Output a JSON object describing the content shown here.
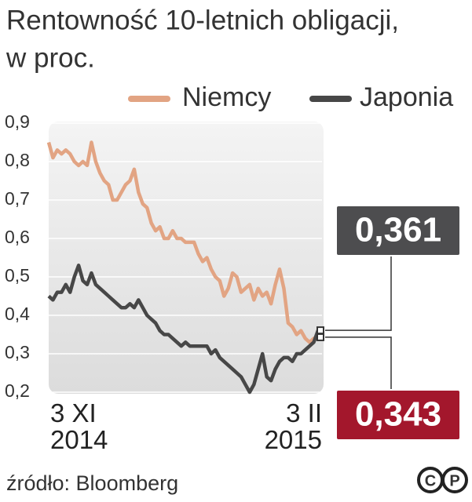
{
  "chart_data": {
    "type": "line",
    "title": "Rentowność 10-letnich obligacji,",
    "subtitle": "w proc.",
    "categories": [
      "3 XI\n2014",
      null,
      null,
      null,
      null,
      null,
      null,
      null,
      null,
      null,
      null,
      null,
      null,
      null,
      null,
      null,
      null,
      null,
      null,
      null,
      null,
      null,
      null,
      null,
      null,
      null,
      null,
      null,
      null,
      null,
      null,
      null,
      null,
      null,
      null,
      null,
      null,
      null,
      null,
      null,
      null,
      null,
      null,
      null,
      null,
      null,
      null,
      null,
      null,
      null,
      null,
      null,
      null,
      null,
      null,
      null,
      null,
      null,
      null,
      null,
      null,
      null,
      null,
      "3 II\n2015"
    ],
    "series": [
      {
        "name": "Niemcy",
        "color": "#e2a483",
        "label_color": "#a3172c",
        "values": [
          0.85,
          0.81,
          0.83,
          0.82,
          0.83,
          0.82,
          0.8,
          0.79,
          0.8,
          0.79,
          0.85,
          0.8,
          0.77,
          0.75,
          0.74,
          0.7,
          0.7,
          0.72,
          0.74,
          0.75,
          0.78,
          0.72,
          0.69,
          0.68,
          0.64,
          0.62,
          0.63,
          0.6,
          0.6,
          0.62,
          0.6,
          0.6,
          0.59,
          0.59,
          0.59,
          0.56,
          0.54,
          0.55,
          0.52,
          0.5,
          0.49,
          0.45,
          0.47,
          0.51,
          0.5,
          0.46,
          0.47,
          0.48,
          0.44,
          0.47,
          0.45,
          0.46,
          0.43,
          0.48,
          0.52,
          0.47,
          0.38,
          0.37,
          0.35,
          0.36,
          0.34,
          0.33,
          0.34,
          0.343
        ],
        "value_labels": [
          null,
          null,
          null,
          null,
          null,
          null,
          null,
          null,
          null,
          null,
          null,
          null,
          null,
          null,
          null,
          null,
          null,
          null,
          null,
          null,
          null,
          null,
          null,
          null,
          null,
          null,
          null,
          null,
          null,
          null,
          null,
          null,
          null,
          null,
          null,
          null,
          null,
          null,
          null,
          null,
          null,
          null,
          null,
          null,
          null,
          null,
          null,
          null,
          null,
          null,
          null,
          null,
          null,
          null,
          null,
          null,
          null,
          null,
          null,
          null,
          null,
          null,
          null,
          "0,343"
        ]
      },
      {
        "name": "Japonia",
        "color": "#474747",
        "label_color": "#4d4d4f",
        "values": [
          0.45,
          0.44,
          0.46,
          0.46,
          0.48,
          0.46,
          0.5,
          0.53,
          0.49,
          0.48,
          0.51,
          0.48,
          0.47,
          0.46,
          0.45,
          0.44,
          0.43,
          0.42,
          0.42,
          0.43,
          0.42,
          0.44,
          0.42,
          0.4,
          0.39,
          0.38,
          0.36,
          0.35,
          0.35,
          0.34,
          0.33,
          0.32,
          0.33,
          0.32,
          0.32,
          0.32,
          0.32,
          0.32,
          0.3,
          0.31,
          0.29,
          0.28,
          0.27,
          0.26,
          0.25,
          0.24,
          0.22,
          0.2,
          0.22,
          0.26,
          0.3,
          0.24,
          0.23,
          0.26,
          0.28,
          0.29,
          0.29,
          0.28,
          0.3,
          0.3,
          0.31,
          0.32,
          0.33,
          0.361
        ],
        "value_labels": [
          null,
          null,
          null,
          null,
          null,
          null,
          null,
          null,
          null,
          null,
          null,
          null,
          null,
          null,
          null,
          null,
          null,
          null,
          null,
          null,
          null,
          null,
          null,
          null,
          null,
          null,
          null,
          null,
          null,
          null,
          null,
          null,
          null,
          null,
          null,
          null,
          null,
          null,
          null,
          null,
          null,
          null,
          null,
          null,
          null,
          null,
          null,
          null,
          null,
          null,
          null,
          null,
          null,
          null,
          null,
          null,
          null,
          null,
          null,
          null,
          null,
          null,
          null,
          "0,361"
        ]
      }
    ],
    "ylim": [
      0.2,
      0.9
    ],
    "yticks": [
      {
        "value": 0.9,
        "label": "0,9"
      },
      {
        "value": 0.8,
        "label": "0,8"
      },
      {
        "value": 0.7,
        "label": "0,7"
      },
      {
        "value": 0.6,
        "label": "0,6"
      },
      {
        "value": 0.5,
        "label": "0,5"
      },
      {
        "value": 0.4,
        "label": "0,4"
      },
      {
        "value": 0.3,
        "label": "0,3"
      },
      {
        "value": 0.2,
        "label": "0,2"
      }
    ],
    "grid": true,
    "source": "źródło: Bloomberg",
    "logo": [
      "C",
      "P"
    ]
  }
}
